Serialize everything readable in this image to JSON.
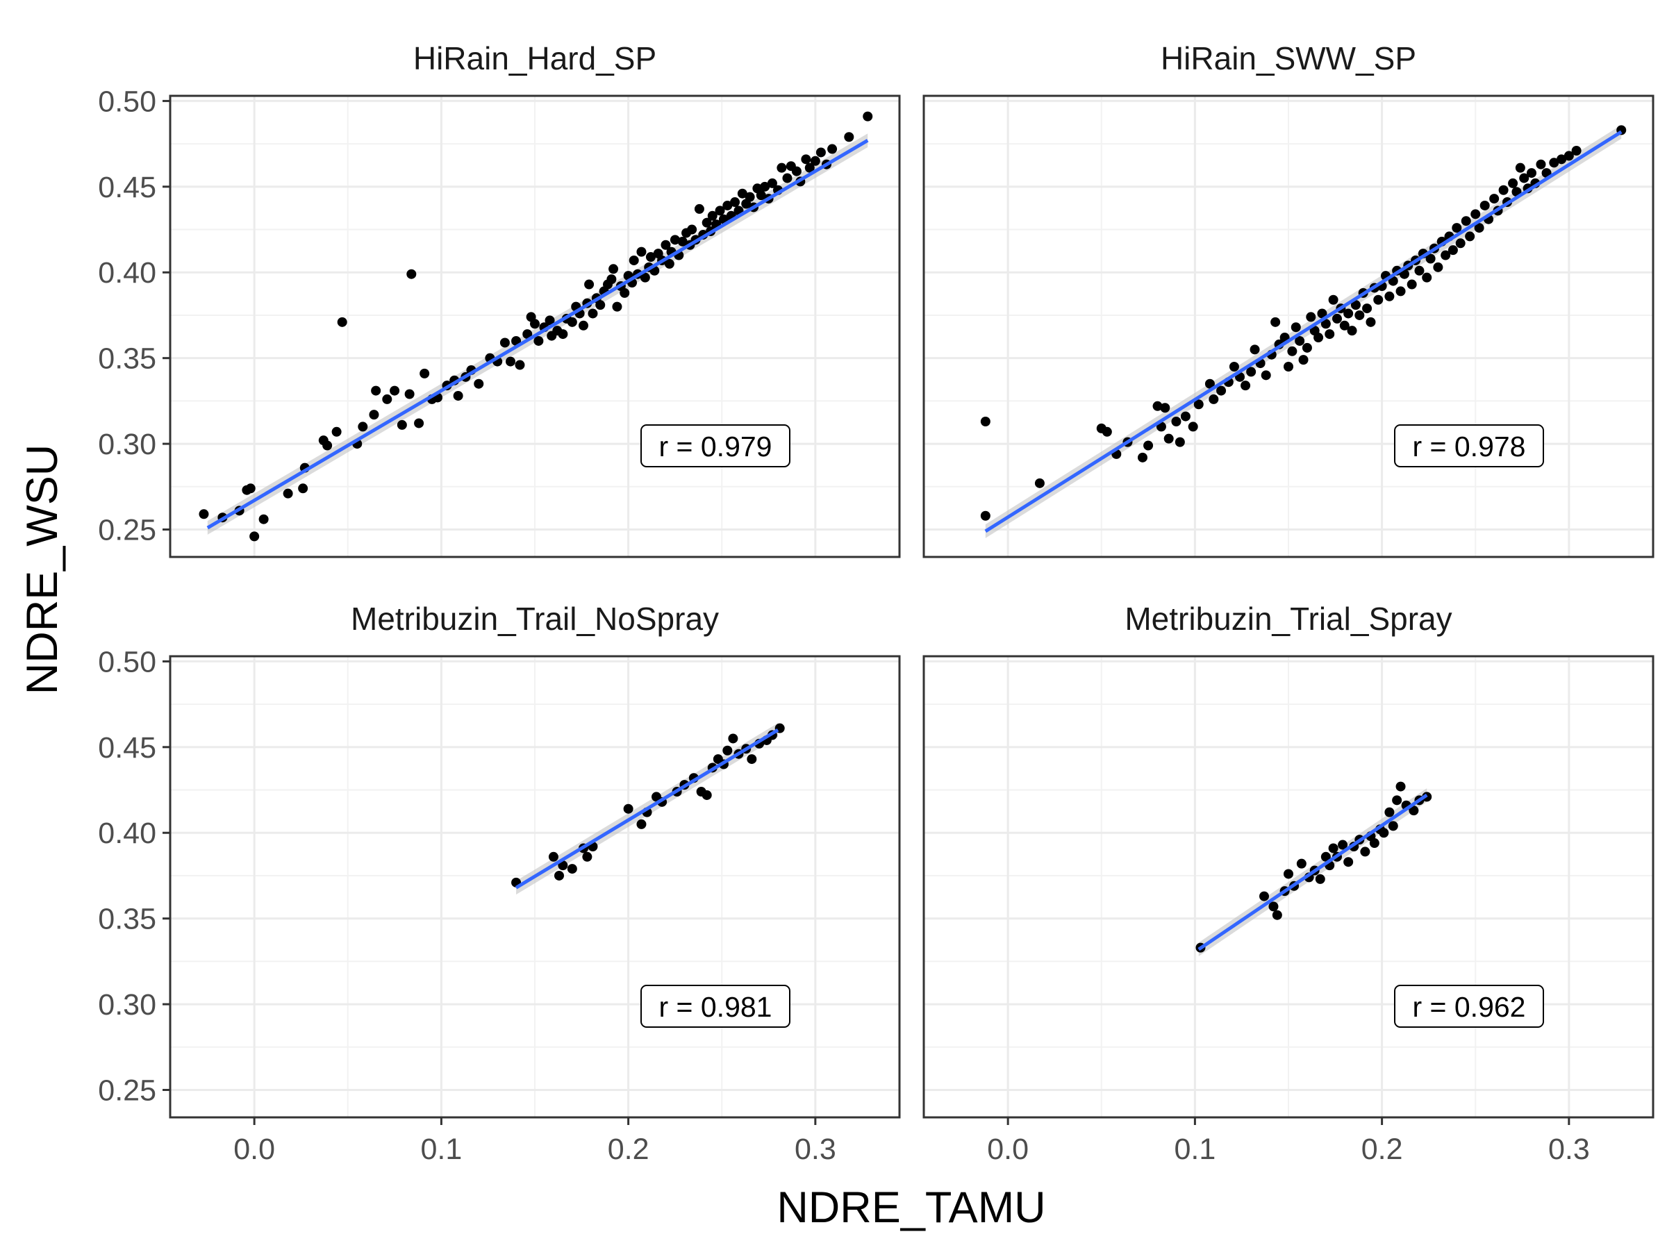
{
  "chart_data": {
    "type": "scatter",
    "xlabel": "NDRE_TAMU",
    "ylabel": "NDRE_WSU",
    "xlim": [
      -0.045,
      0.345
    ],
    "ylim": [
      0.234,
      0.503
    ],
    "x_ticks": [
      "0.0",
      "0.1",
      "0.2",
      "0.3"
    ],
    "y_ticks": [
      "0.25",
      "0.30",
      "0.35",
      "0.40",
      "0.45",
      "0.50"
    ],
    "grid": true,
    "colors": {
      "points": "#000000",
      "fit_line": "#3366FF",
      "ribbon": "#BEBEBE",
      "minor_grid": "#F2F2F2",
      "major_grid": "#EBEBEB",
      "panel_border": "#333333"
    },
    "panels": [
      {
        "title": "HiRain_Hard_SP",
        "r_label": "r = 0.979",
        "fit": {
          "x": [
            -0.025,
            0.328
          ],
          "y": [
            0.251,
            0.477
          ]
        },
        "points": [
          [
            -0.027,
            0.259
          ],
          [
            -0.017,
            0.257
          ],
          [
            -0.008,
            0.261
          ],
          [
            -0.004,
            0.273
          ],
          [
            -0.002,
            0.274
          ],
          [
            0.0,
            0.246
          ],
          [
            0.005,
            0.256
          ],
          [
            0.018,
            0.271
          ],
          [
            0.026,
            0.274
          ],
          [
            0.027,
            0.286
          ],
          [
            0.037,
            0.302
          ],
          [
            0.039,
            0.299
          ],
          [
            0.044,
            0.307
          ],
          [
            0.047,
            0.371
          ],
          [
            0.055,
            0.3
          ],
          [
            0.058,
            0.31
          ],
          [
            0.064,
            0.317
          ],
          [
            0.065,
            0.331
          ],
          [
            0.071,
            0.326
          ],
          [
            0.075,
            0.331
          ],
          [
            0.079,
            0.311
          ],
          [
            0.083,
            0.329
          ],
          [
            0.084,
            0.399
          ],
          [
            0.088,
            0.312
          ],
          [
            0.091,
            0.341
          ],
          [
            0.095,
            0.326
          ],
          [
            0.098,
            0.327
          ],
          [
            0.103,
            0.334
          ],
          [
            0.107,
            0.337
          ],
          [
            0.109,
            0.328
          ],
          [
            0.113,
            0.339
          ],
          [
            0.116,
            0.343
          ],
          [
            0.12,
            0.335
          ],
          [
            0.126,
            0.35
          ],
          [
            0.13,
            0.348
          ],
          [
            0.134,
            0.359
          ],
          [
            0.137,
            0.348
          ],
          [
            0.14,
            0.36
          ],
          [
            0.142,
            0.346
          ],
          [
            0.146,
            0.364
          ],
          [
            0.148,
            0.374
          ],
          [
            0.15,
            0.37
          ],
          [
            0.152,
            0.36
          ],
          [
            0.155,
            0.368
          ],
          [
            0.158,
            0.372
          ],
          [
            0.159,
            0.363
          ],
          [
            0.162,
            0.366
          ],
          [
            0.165,
            0.364
          ],
          [
            0.167,
            0.373
          ],
          [
            0.17,
            0.371
          ],
          [
            0.172,
            0.38
          ],
          [
            0.174,
            0.376
          ],
          [
            0.176,
            0.369
          ],
          [
            0.178,
            0.382
          ],
          [
            0.179,
            0.393
          ],
          [
            0.181,
            0.376
          ],
          [
            0.183,
            0.385
          ],
          [
            0.185,
            0.381
          ],
          [
            0.187,
            0.389
          ],
          [
            0.189,
            0.393
          ],
          [
            0.191,
            0.396
          ],
          [
            0.192,
            0.402
          ],
          [
            0.194,
            0.38
          ],
          [
            0.196,
            0.392
          ],
          [
            0.198,
            0.388
          ],
          [
            0.2,
            0.398
          ],
          [
            0.202,
            0.394
          ],
          [
            0.203,
            0.407
          ],
          [
            0.205,
            0.399
          ],
          [
            0.207,
            0.412
          ],
          [
            0.209,
            0.397
          ],
          [
            0.211,
            0.403
          ],
          [
            0.212,
            0.409
          ],
          [
            0.214,
            0.401
          ],
          [
            0.216,
            0.411
          ],
          [
            0.218,
            0.407
          ],
          [
            0.22,
            0.416
          ],
          [
            0.222,
            0.405
          ],
          [
            0.223,
            0.412
          ],
          [
            0.225,
            0.419
          ],
          [
            0.227,
            0.41
          ],
          [
            0.229,
            0.418
          ],
          [
            0.231,
            0.423
          ],
          [
            0.233,
            0.416
          ],
          [
            0.234,
            0.425
          ],
          [
            0.236,
            0.419
          ],
          [
            0.238,
            0.437
          ],
          [
            0.24,
            0.422
          ],
          [
            0.242,
            0.429
          ],
          [
            0.244,
            0.424
          ],
          [
            0.245,
            0.433
          ],
          [
            0.247,
            0.428
          ],
          [
            0.249,
            0.436
          ],
          [
            0.251,
            0.431
          ],
          [
            0.253,
            0.439
          ],
          [
            0.255,
            0.433
          ],
          [
            0.257,
            0.441
          ],
          [
            0.259,
            0.436
          ],
          [
            0.261,
            0.446
          ],
          [
            0.263,
            0.44
          ],
          [
            0.265,
            0.444
          ],
          [
            0.267,
            0.438
          ],
          [
            0.269,
            0.449
          ],
          [
            0.271,
            0.445
          ],
          [
            0.273,
            0.45
          ],
          [
            0.275,
            0.443
          ],
          [
            0.277,
            0.452
          ],
          [
            0.28,
            0.448
          ],
          [
            0.282,
            0.461
          ],
          [
            0.285,
            0.455
          ],
          [
            0.287,
            0.462
          ],
          [
            0.29,
            0.459
          ],
          [
            0.292,
            0.453
          ],
          [
            0.295,
            0.466
          ],
          [
            0.297,
            0.461
          ],
          [
            0.3,
            0.465
          ],
          [
            0.303,
            0.47
          ],
          [
            0.306,
            0.463
          ],
          [
            0.309,
            0.472
          ],
          [
            0.318,
            0.479
          ],
          [
            0.328,
            0.491
          ]
        ]
      },
      {
        "title": "HiRain_SWW_SP",
        "r_label": "r = 0.978",
        "fit": {
          "x": [
            -0.012,
            0.328
          ],
          "y": [
            0.249,
            0.482
          ]
        },
        "points": [
          [
            -0.012,
            0.313
          ],
          [
            -0.012,
            0.258
          ],
          [
            0.017,
            0.277
          ],
          [
            0.05,
            0.309
          ],
          [
            0.053,
            0.307
          ],
          [
            0.058,
            0.294
          ],
          [
            0.064,
            0.301
          ],
          [
            0.072,
            0.292
          ],
          [
            0.075,
            0.299
          ],
          [
            0.08,
            0.322
          ],
          [
            0.082,
            0.31
          ],
          [
            0.084,
            0.321
          ],
          [
            0.086,
            0.303
          ],
          [
            0.09,
            0.313
          ],
          [
            0.092,
            0.301
          ],
          [
            0.095,
            0.316
          ],
          [
            0.099,
            0.31
          ],
          [
            0.102,
            0.323
          ],
          [
            0.108,
            0.335
          ],
          [
            0.11,
            0.326
          ],
          [
            0.114,
            0.331
          ],
          [
            0.118,
            0.336
          ],
          [
            0.121,
            0.345
          ],
          [
            0.124,
            0.339
          ],
          [
            0.127,
            0.334
          ],
          [
            0.13,
            0.342
          ],
          [
            0.132,
            0.355
          ],
          [
            0.135,
            0.347
          ],
          [
            0.138,
            0.34
          ],
          [
            0.141,
            0.352
          ],
          [
            0.143,
            0.371
          ],
          [
            0.145,
            0.358
          ],
          [
            0.148,
            0.362
          ],
          [
            0.15,
            0.345
          ],
          [
            0.152,
            0.354
          ],
          [
            0.154,
            0.368
          ],
          [
            0.156,
            0.36
          ],
          [
            0.158,
            0.349
          ],
          [
            0.16,
            0.356
          ],
          [
            0.162,
            0.374
          ],
          [
            0.164,
            0.366
          ],
          [
            0.166,
            0.362
          ],
          [
            0.168,
            0.376
          ],
          [
            0.17,
            0.37
          ],
          [
            0.172,
            0.364
          ],
          [
            0.174,
            0.384
          ],
          [
            0.176,
            0.373
          ],
          [
            0.178,
            0.379
          ],
          [
            0.18,
            0.369
          ],
          [
            0.182,
            0.376
          ],
          [
            0.184,
            0.366
          ],
          [
            0.186,
            0.381
          ],
          [
            0.188,
            0.375
          ],
          [
            0.19,
            0.388
          ],
          [
            0.192,
            0.379
          ],
          [
            0.194,
            0.371
          ],
          [
            0.196,
            0.391
          ],
          [
            0.198,
            0.384
          ],
          [
            0.2,
            0.392
          ],
          [
            0.202,
            0.398
          ],
          [
            0.204,
            0.386
          ],
          [
            0.206,
            0.395
          ],
          [
            0.208,
            0.401
          ],
          [
            0.21,
            0.389
          ],
          [
            0.212,
            0.399
          ],
          [
            0.214,
            0.404
          ],
          [
            0.216,
            0.393
          ],
          [
            0.218,
            0.407
          ],
          [
            0.22,
            0.401
          ],
          [
            0.222,
            0.411
          ],
          [
            0.224,
            0.397
          ],
          [
            0.226,
            0.408
          ],
          [
            0.228,
            0.414
          ],
          [
            0.23,
            0.403
          ],
          [
            0.232,
            0.418
          ],
          [
            0.234,
            0.41
          ],
          [
            0.236,
            0.421
          ],
          [
            0.238,
            0.413
          ],
          [
            0.24,
            0.426
          ],
          [
            0.242,
            0.417
          ],
          [
            0.245,
            0.43
          ],
          [
            0.247,
            0.421
          ],
          [
            0.25,
            0.434
          ],
          [
            0.252,
            0.426
          ],
          [
            0.255,
            0.439
          ],
          [
            0.257,
            0.431
          ],
          [
            0.26,
            0.443
          ],
          [
            0.262,
            0.436
          ],
          [
            0.265,
            0.448
          ],
          [
            0.267,
            0.441
          ],
          [
            0.27,
            0.452
          ],
          [
            0.272,
            0.447
          ],
          [
            0.274,
            0.461
          ],
          [
            0.276,
            0.455
          ],
          [
            0.278,
            0.449
          ],
          [
            0.28,
            0.458
          ],
          [
            0.282,
            0.452
          ],
          [
            0.285,
            0.463
          ],
          [
            0.288,
            0.458
          ],
          [
            0.292,
            0.464
          ],
          [
            0.296,
            0.466
          ],
          [
            0.3,
            0.468
          ],
          [
            0.304,
            0.471
          ],
          [
            0.328,
            0.483
          ]
        ]
      },
      {
        "title": "Metribuzin_Trail_NoSpray",
        "r_label": "r = 0.981",
        "fit": {
          "x": [
            0.14,
            0.28
          ],
          "y": [
            0.368,
            0.46
          ]
        },
        "points": [
          [
            0.14,
            0.371
          ],
          [
            0.16,
            0.386
          ],
          [
            0.163,
            0.375
          ],
          [
            0.165,
            0.381
          ],
          [
            0.17,
            0.379
          ],
          [
            0.176,
            0.391
          ],
          [
            0.178,
            0.386
          ],
          [
            0.181,
            0.392
          ],
          [
            0.2,
            0.414
          ],
          [
            0.207,
            0.405
          ],
          [
            0.21,
            0.412
          ],
          [
            0.215,
            0.421
          ],
          [
            0.218,
            0.418
          ],
          [
            0.226,
            0.424
          ],
          [
            0.23,
            0.428
          ],
          [
            0.235,
            0.432
          ],
          [
            0.239,
            0.424
          ],
          [
            0.242,
            0.422
          ],
          [
            0.245,
            0.438
          ],
          [
            0.248,
            0.443
          ],
          [
            0.251,
            0.44
          ],
          [
            0.253,
            0.448
          ],
          [
            0.256,
            0.455
          ],
          [
            0.259,
            0.446
          ],
          [
            0.263,
            0.449
          ],
          [
            0.266,
            0.443
          ],
          [
            0.27,
            0.452
          ],
          [
            0.274,
            0.454
          ],
          [
            0.277,
            0.457
          ],
          [
            0.281,
            0.461
          ]
        ]
      },
      {
        "title": "Metribuzin_Trial_Spray",
        "r_label": "r = 0.962",
        "fit": {
          "x": [
            0.102,
            0.224
          ],
          "y": [
            0.332,
            0.422
          ]
        },
        "points": [
          [
            0.103,
            0.333
          ],
          [
            0.137,
            0.363
          ],
          [
            0.142,
            0.357
          ],
          [
            0.144,
            0.352
          ],
          [
            0.148,
            0.366
          ],
          [
            0.15,
            0.376
          ],
          [
            0.153,
            0.369
          ],
          [
            0.157,
            0.382
          ],
          [
            0.161,
            0.374
          ],
          [
            0.164,
            0.378
          ],
          [
            0.167,
            0.373
          ],
          [
            0.17,
            0.386
          ],
          [
            0.172,
            0.381
          ],
          [
            0.174,
            0.391
          ],
          [
            0.176,
            0.386
          ],
          [
            0.179,
            0.393
          ],
          [
            0.182,
            0.383
          ],
          [
            0.185,
            0.392
          ],
          [
            0.188,
            0.396
          ],
          [
            0.191,
            0.389
          ],
          [
            0.194,
            0.398
          ],
          [
            0.196,
            0.394
          ],
          [
            0.199,
            0.402
          ],
          [
            0.201,
            0.4
          ],
          [
            0.204,
            0.412
          ],
          [
            0.206,
            0.404
          ],
          [
            0.208,
            0.419
          ],
          [
            0.21,
            0.427
          ],
          [
            0.213,
            0.416
          ],
          [
            0.217,
            0.413
          ],
          [
            0.22,
            0.419
          ],
          [
            0.224,
            0.421
          ]
        ]
      }
    ]
  }
}
